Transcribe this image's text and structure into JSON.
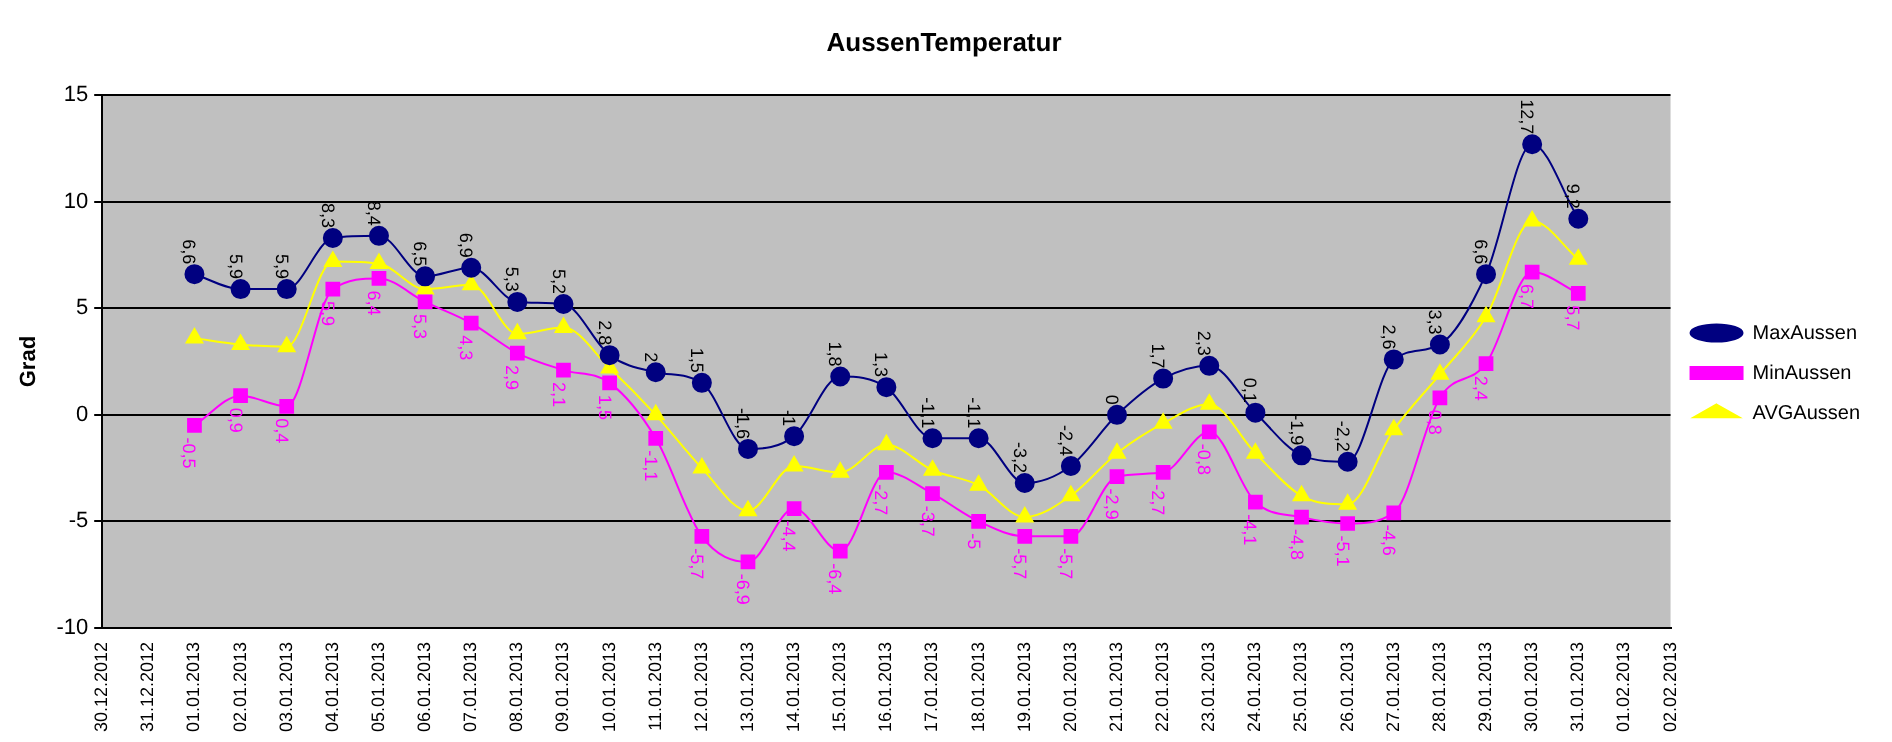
{
  "chart_data": {
    "type": "line",
    "title": "AussenTemperatur",
    "ylabel": "Grad",
    "categories": [
      "30.12.2012",
      "31.12.2012",
      "01.01.2013",
      "02.01.2013",
      "03.01.2013",
      "04.01.2013",
      "05.01.2013",
      "06.01.2013",
      "07.01.2013",
      "08.01.2013",
      "09.01.2013",
      "10.01.2013",
      "11.01.2013",
      "12.01.2013",
      "13.01.2013",
      "14.01.2013",
      "15.01.2013",
      "16.01.2013",
      "17.01.2013",
      "18.01.2013",
      "19.01.2013",
      "20.01.2013",
      "21.01.2013",
      "22.01.2013",
      "23.01.2013",
      "24.01.2013",
      "25.01.2013",
      "26.01.2013",
      "27.01.2013",
      "28.01.2013",
      "29.01.2013",
      "30.01.2013",
      "31.01.2013",
      "01.02.2013",
      "02.02.2013"
    ],
    "series": [
      {
        "name": "MaxAussen",
        "color": "#000080",
        "marker": "circle",
        "values": [
          null,
          null,
          6.6,
          5.9,
          5.9,
          8.3,
          8.4,
          6.5,
          6.9,
          5.3,
          5.2,
          2.8,
          2,
          1.5,
          -1.6,
          -1,
          1.8,
          1.3,
          -1.1,
          -1.1,
          -3.2,
          -2.4,
          0,
          1.7,
          2.3,
          0.1,
          -1.9,
          -2.2,
          2.6,
          3.3,
          6.6,
          12.7,
          9.2,
          null,
          null
        ],
        "value_labels": [
          null,
          null,
          "6,6",
          "5,9",
          "5,9",
          "8,3",
          "8,4",
          "6,5",
          "6,9",
          "5,3",
          "5,2",
          "2,8",
          "2",
          "1,5",
          "-1,6",
          "-1",
          "1,8",
          "1,3",
          "-1,1",
          "-1,1",
          "-3,2",
          "-2,4",
          "0",
          "1,7",
          "2,3",
          "0,1",
          "-1,9",
          "-2,2",
          "2,6",
          "3,3",
          "6,6",
          "12,7",
          "9,2",
          null,
          null
        ]
      },
      {
        "name": "MinAussen",
        "color": "#ff00ff",
        "marker": "square",
        "values": [
          null,
          null,
          -0.5,
          0.9,
          0.4,
          5.9,
          6.4,
          5.3,
          4.3,
          2.9,
          2.1,
          1.5,
          -1.1,
          -5.7,
          -6.9,
          -4.4,
          -6.4,
          -2.7,
          -3.7,
          -5,
          -5.7,
          -5.7,
          -2.9,
          -2.7,
          -0.8,
          -4.1,
          -4.8,
          -5.1,
          -4.6,
          0.8,
          2.4,
          6.7,
          5.7,
          null,
          null
        ],
        "value_labels": [
          null,
          null,
          "-0,5",
          "0,9",
          "0,4",
          "5,9",
          "6,4",
          "5,3",
          "4,3",
          "2,9",
          "2,1",
          "1,5",
          "-1,1",
          "-5,7",
          "-6,9",
          "-4,4",
          "-6,4",
          "-2,7",
          "-3,7",
          "-5",
          "-5,7",
          "-5,7",
          "-2,9",
          "-2,7",
          "-0,8",
          "-4,1",
          "-4,8",
          "-5,1",
          "-4,6",
          "0,8",
          "2,4",
          "6,7",
          "5,7",
          null,
          null
        ]
      },
      {
        "name": "AVGAussen",
        "color": "#ffff00",
        "marker": "triangle",
        "values": [
          null,
          null,
          3.6,
          3.3,
          3.2,
          7.2,
          7.1,
          5.9,
          6.1,
          3.8,
          4.1,
          2.2,
          0,
          -2.5,
          -4.5,
          -2.4,
          -2.7,
          -1.4,
          -2.6,
          -3.3,
          -4.8,
          -3.8,
          -1.8,
          -0.4,
          0.5,
          -1.8,
          -3.8,
          -4.2,
          -0.7,
          1.9,
          4.6,
          9.1,
          7.3,
          null,
          null
        ]
      }
    ],
    "ylim": [
      -10,
      15
    ],
    "yticks": [
      -10,
      -5,
      0,
      5,
      10,
      15
    ],
    "grid": "y",
    "legend": "right"
  }
}
